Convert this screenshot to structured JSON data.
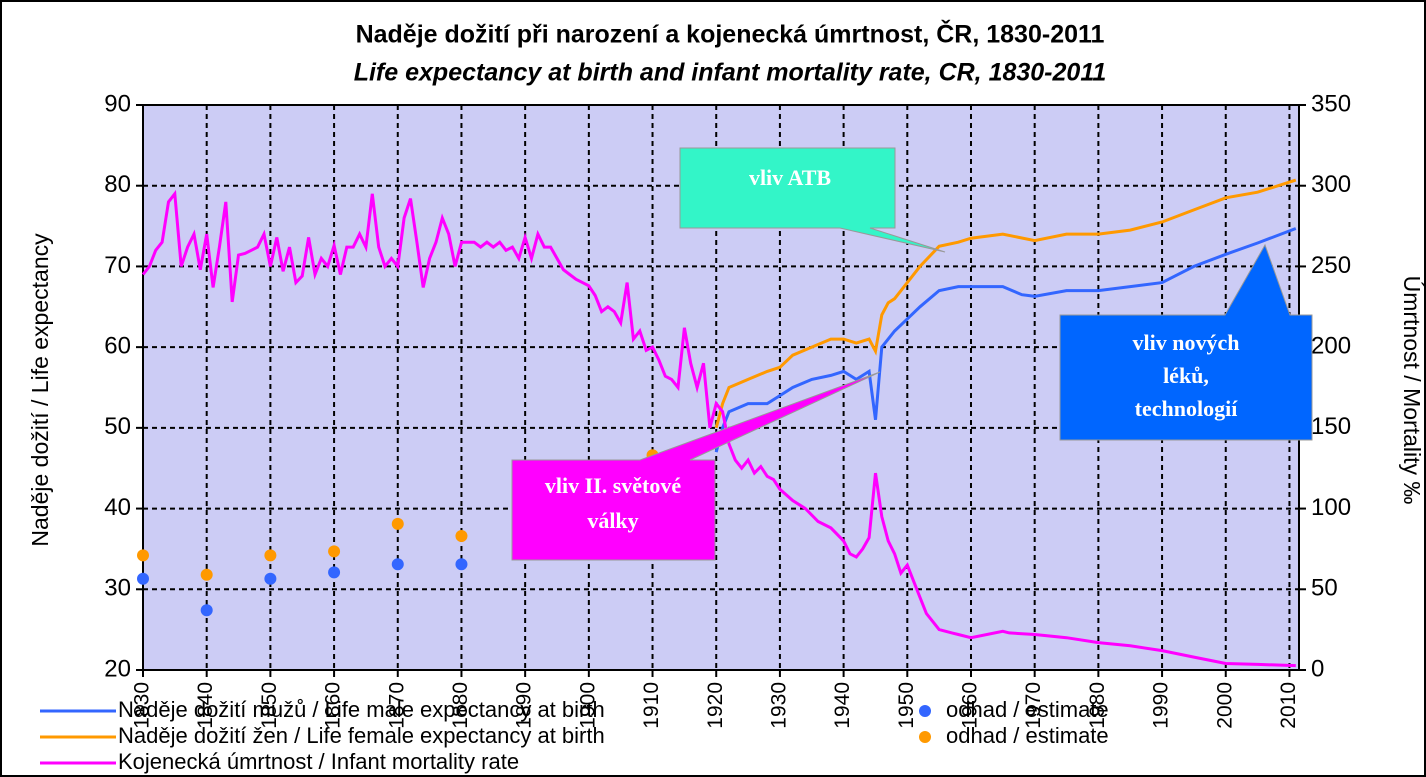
{
  "chart_data": {
    "type": "line",
    "title": "Naděje dožití při narození a kojenecká úmrtnost, ČR, 1830-2011",
    "subtitle": "Life expectancy at birth and infant mortality rate, CR, 1830-2011",
    "ylabel": "Naděje dožití / Life expectancy",
    "y2label": "Úmrtnost / Mortality ‰",
    "xlim": [
      1830,
      2011.5
    ],
    "xticks": [
      1830,
      1840,
      1850,
      1860,
      1870,
      1880,
      1890,
      1900,
      1910,
      1920,
      1930,
      1940,
      1950,
      1960,
      1970,
      1980,
      1990,
      2000,
      2010
    ],
    "ylim": [
      20,
      90
    ],
    "yticks": [
      20,
      30,
      40,
      50,
      60,
      70,
      80,
      90
    ],
    "y2lim": [
      0,
      350
    ],
    "y2ticks": [
      0,
      50,
      100,
      150,
      200,
      250,
      300,
      350
    ],
    "grid": true,
    "legend": "bottom",
    "series": [
      {
        "name": "Naděje dožití mužů / Life male expectancy at birth",
        "type": "line",
        "color": "#3366ff",
        "x": [
          1920,
          1921,
          1922,
          1925,
          1928,
          1930,
          1932,
          1935,
          1938,
          1940,
          1942,
          1944,
          1945,
          1946,
          1947,
          1948,
          1950,
          1952,
          1955,
          1958,
          1960,
          1965,
          1968,
          1970,
          1975,
          1980,
          1985,
          1990,
          1995,
          2000,
          2005,
          2011
        ],
        "values": [
          47,
          50,
          52,
          53,
          53,
          54,
          55,
          56,
          56.5,
          57,
          56,
          57,
          51,
          60,
          61,
          62,
          63.5,
          65,
          67,
          67.5,
          67.5,
          67.5,
          66.5,
          66.3,
          67,
          67,
          67.5,
          68,
          70,
          71.5,
          72.9,
          74.7
        ]
      },
      {
        "name": "Naděje dožití žen / Life female expectancy at birth",
        "type": "line",
        "color": "#ff9900",
        "x": [
          1920,
          1921,
          1922,
          1925,
          1928,
          1930,
          1932,
          1935,
          1938,
          1940,
          1942,
          1944,
          1945,
          1946,
          1947,
          1948,
          1950,
          1952,
          1955,
          1958,
          1960,
          1965,
          1970,
          1975,
          1980,
          1985,
          1990,
          1995,
          2000,
          2005,
          2011
        ],
        "values": [
          50,
          53,
          55,
          56,
          57,
          57.5,
          59,
          60,
          61,
          61,
          60.5,
          61,
          59.5,
          64,
          65.5,
          66,
          68,
          70,
          72.5,
          73,
          73.5,
          74,
          73.2,
          74,
          74,
          74.5,
          75.5,
          77,
          78.5,
          79.2,
          80.7
        ]
      },
      {
        "name": "Kojenecká úmrtnost / Infant mortality rate",
        "type": "line",
        "color": "#ff00ff",
        "axis": "y2",
        "x": [
          1830,
          1831,
          1832,
          1833,
          1834,
          1835,
          1836,
          1837,
          1838,
          1839,
          1840,
          1841,
          1842,
          1843,
          1844,
          1845,
          1846,
          1847,
          1848,
          1849,
          1850,
          1851,
          1852,
          1853,
          1854,
          1855,
          1856,
          1857,
          1858,
          1859,
          1860,
          1861,
          1862,
          1863,
          1864,
          1865,
          1866,
          1867,
          1868,
          1869,
          1870,
          1871,
          1872,
          1873,
          1874,
          1875,
          1876,
          1877,
          1878,
          1879,
          1880,
          1881,
          1882,
          1883,
          1884,
          1885,
          1886,
          1887,
          1888,
          1889,
          1890,
          1891,
          1892,
          1893,
          1894,
          1895,
          1896,
          1897,
          1898,
          1899,
          1900,
          1901,
          1902,
          1903,
          1904,
          1905,
          1906,
          1907,
          1908,
          1909,
          1910,
          1911,
          1912,
          1913,
          1914,
          1915,
          1916,
          1917,
          1918,
          1919,
          1920,
          1921,
          1922,
          1923,
          1924,
          1925,
          1926,
          1927,
          1928,
          1929,
          1930,
          1932,
          1934,
          1936,
          1938,
          1940,
          1941,
          1942,
          1943,
          1944,
          1945,
          1946,
          1947,
          1948,
          1949,
          1950,
          1952,
          1953,
          1954,
          1955,
          1957,
          1958,
          1960,
          1965,
          1966,
          1970,
          1975,
          1980,
          1985,
          1990,
          1995,
          2000,
          2005,
          2011
        ],
        "values": [
          245,
          250,
          260,
          265,
          290,
          295,
          250,
          262,
          270,
          248,
          270,
          237,
          262,
          290,
          228,
          257,
          258,
          260,
          262,
          270,
          250,
          268,
          247,
          262,
          240,
          244,
          268,
          245,
          255,
          250,
          263,
          245,
          262,
          262,
          270,
          262,
          295,
          262,
          250,
          255,
          250,
          280,
          292,
          265,
          237,
          255,
          265,
          280,
          270,
          250,
          265,
          265,
          265,
          262,
          265,
          262,
          265,
          260,
          262,
          255,
          268,
          255,
          270,
          262,
          262,
          255,
          248,
          245,
          242,
          240,
          238,
          232,
          222,
          225,
          222,
          215,
          240,
          205,
          210,
          198,
          200,
          192,
          182,
          180,
          175,
          212,
          190,
          175,
          190,
          150,
          165,
          160,
          140,
          130,
          125,
          130,
          122,
          126,
          120,
          118,
          112,
          105,
          100,
          92,
          88,
          80,
          72,
          70,
          75,
          82,
          122,
          95,
          80,
          72,
          60,
          65,
          45,
          35,
          30,
          25,
          23,
          22,
          20,
          24,
          23,
          22,
          20,
          17,
          15,
          12,
          8,
          4,
          3.5,
          2.7
        ]
      },
      {
        "name": "odhad / estimate",
        "type": "scatter",
        "color": "#3366ff",
        "x": [
          1830,
          1840,
          1850,
          1860,
          1870,
          1880,
          1900,
          1910
        ],
        "values": [
          31.3,
          27.4,
          31.3,
          32.1,
          33.1,
          33.1,
          38.9,
          43.2
        ]
      },
      {
        "name": "odhad / estimate",
        "type": "scatter",
        "color": "#ff9900",
        "x": [
          1830,
          1840,
          1850,
          1860,
          1870,
          1880,
          1900,
          1910
        ],
        "values": [
          34.2,
          31.8,
          34.2,
          34.7,
          38.1,
          36.6,
          42,
          46.6
        ]
      }
    ],
    "annotations": [
      {
        "lines": [
          "vliv ATB"
        ],
        "color": "#33f5c8"
      },
      {
        "lines": [
          "vliv II. světové",
          "války"
        ],
        "color": "#ff00ff"
      },
      {
        "lines": [
          "vliv nových",
          "léků,",
          "technologií"
        ],
        "color": "#0066ff"
      }
    ]
  }
}
